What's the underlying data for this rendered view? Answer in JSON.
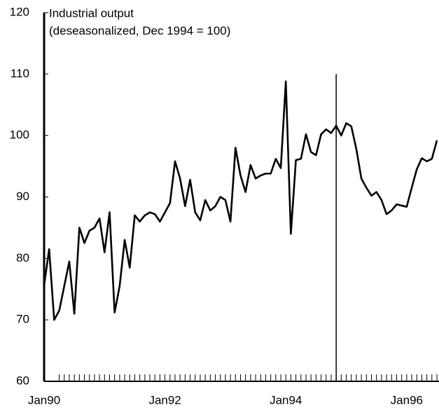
{
  "chart_data": {
    "type": "line",
    "title": "Industrial output",
    "subtitle": "(deseasonalized, Dec 1994 = 100)",
    "categories": [
      "Jan90",
      null,
      null,
      null,
      null,
      null,
      null,
      null,
      null,
      null,
      null,
      null,
      null,
      null,
      null,
      null,
      null,
      null,
      null,
      null,
      null,
      null,
      null,
      null,
      "Jan92",
      null,
      null,
      null,
      null,
      null,
      null,
      null,
      null,
      null,
      null,
      null,
      null,
      null,
      null,
      null,
      null,
      null,
      null,
      null,
      null,
      null,
      null,
      null,
      "Jan94",
      null,
      null,
      null,
      null,
      null,
      null,
      null,
      null,
      null,
      null,
      null,
      null,
      null,
      null,
      null,
      null,
      null,
      null,
      null,
      null,
      null,
      null,
      null,
      "Jan96",
      null,
      null,
      null,
      null,
      null,
      null
    ],
    "series": [
      {
        "name": "Industrial output",
        "color": "#000000",
        "values": [
          75.6,
          81.5,
          70,
          71.5,
          75.5,
          79.5,
          71,
          85,
          82.5,
          84.5,
          85,
          86.5,
          81,
          87.5,
          71.2,
          75.5,
          83,
          78.5,
          87,
          86,
          87,
          87.5,
          87.2,
          86,
          87.5,
          89,
          95.8,
          93,
          88.5,
          92.8,
          87.5,
          86.2,
          89.5,
          87.8,
          88.5,
          90,
          89.5,
          86,
          98,
          93.5,
          90.8,
          95.2,
          93,
          93.5,
          93.8,
          93.8,
          96.2,
          94.7,
          108.8,
          84,
          96,
          96.2,
          100.2,
          97.3,
          96.8,
          100.2,
          101,
          100.4,
          101.6,
          100,
          102,
          101.5,
          97.8,
          93,
          91.5,
          90.2,
          90.8,
          89.5,
          87.2,
          87.8,
          88.8,
          88.6,
          88.4,
          91.5,
          94.5,
          96.3,
          95.8,
          96.2,
          99.2
        ]
      }
    ],
    "vline": 58,
    "ylim": [
      60,
      120
    ],
    "yticks": [
      60,
      70,
      80,
      90,
      100,
      110,
      120
    ],
    "grid": false
  }
}
